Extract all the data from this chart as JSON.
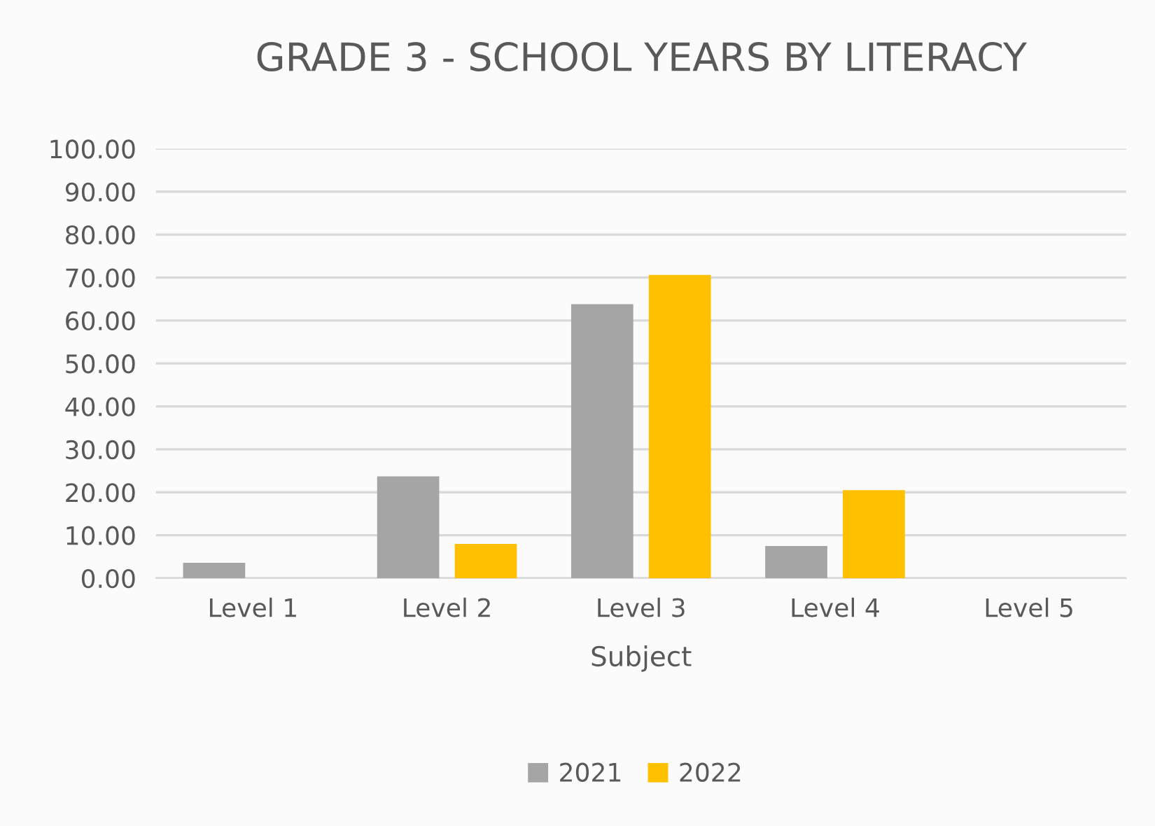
{
  "chart_data": {
    "type": "bar",
    "title": "GRADE 3 - SCHOOL YEARS BY LITERACY",
    "xlabel": "Subject",
    "categories": [
      "Level 1",
      "Level 2",
      "Level 3",
      "Level 4",
      "Level 5"
    ],
    "series": [
      {
        "name": "2021",
        "color": "#a5a5a5",
        "values": [
          3.6,
          23.7,
          63.8,
          7.5,
          0
        ]
      },
      {
        "name": "2022",
        "color": "#ffc000",
        "values": [
          0,
          8.0,
          70.6,
          20.5,
          0
        ]
      }
    ],
    "ylim": [
      0,
      100
    ],
    "yticks": [
      {
        "value": 0,
        "label": "0.00"
      },
      {
        "value": 10,
        "label": "10.00"
      },
      {
        "value": 20,
        "label": "20.00"
      },
      {
        "value": 30,
        "label": "30.00"
      },
      {
        "value": 40,
        "label": "40.00"
      },
      {
        "value": 50,
        "label": "50.00"
      },
      {
        "value": 60,
        "label": "60.00"
      },
      {
        "value": 70,
        "label": "70.00"
      },
      {
        "value": 80,
        "label": "80.00"
      },
      {
        "value": 90,
        "label": "90.00"
      },
      {
        "value": 100,
        "label": "100.00"
      }
    ],
    "grid": "y",
    "legend": "bottom"
  }
}
